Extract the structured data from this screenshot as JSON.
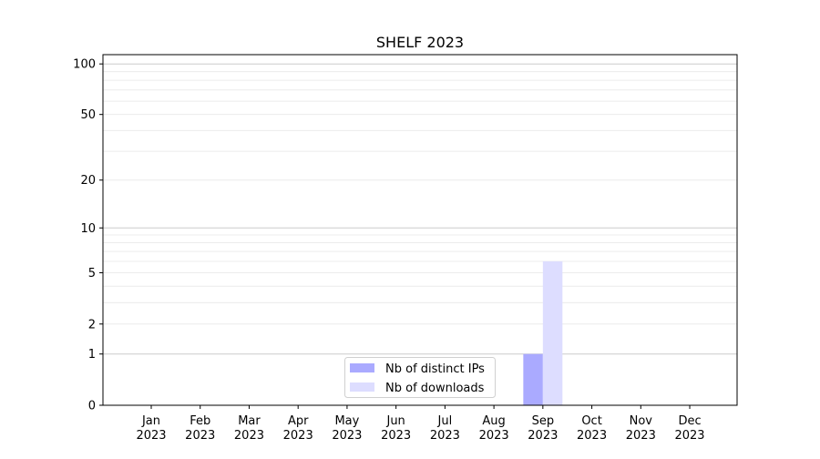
{
  "chart_data": {
    "type": "bar",
    "title": "SHELF 2023",
    "xlabel": "",
    "ylabel": "",
    "yscale": "log(1+y)",
    "ylim": [
      0,
      113.5
    ],
    "yticks": [
      0,
      1,
      2,
      5,
      10,
      20,
      50,
      100
    ],
    "grid": true,
    "legend_placement": "lower-center",
    "categories": [
      "Jan\n2023",
      "Feb\n2023",
      "Mar\n2023",
      "Apr\n2023",
      "May\n2023",
      "Jun\n2023",
      "Jul\n2023",
      "Aug\n2023",
      "Sep\n2023",
      "Oct\n2023",
      "Nov\n2023",
      "Dec\n2023"
    ],
    "series": [
      {
        "name": "Nb of distinct IPs",
        "color": "#aaaaff",
        "values": [
          0,
          0,
          0,
          0,
          0,
          0,
          0,
          0,
          1,
          0,
          0,
          0
        ]
      },
      {
        "name": "Nb of downloads",
        "color": "#ddddff",
        "values": [
          0,
          0,
          0,
          0,
          0,
          0,
          0,
          0,
          6,
          0,
          0,
          0
        ]
      }
    ]
  }
}
